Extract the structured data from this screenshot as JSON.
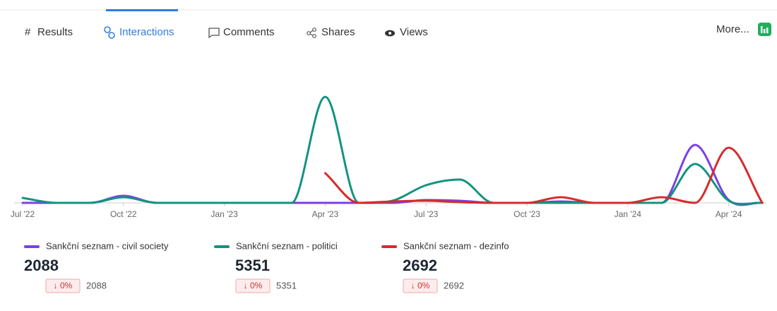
{
  "tabs": [
    "Results",
    "Interactions",
    "Comments",
    "Shares",
    "Views"
  ],
  "more_button": "More...",
  "chart_data": {
    "type": "line",
    "categories": [
      "Jul '22",
      null,
      null,
      "Oct '22",
      null,
      null,
      "Jan '23",
      null,
      null,
      "Apr '23",
      null,
      null,
      "Jul '23",
      null,
      null,
      "Oct '23",
      null,
      null,
      "Jan '24",
      null,
      null,
      "Apr '24",
      null
    ],
    "ylim": [
      0,
      160
    ],
    "series": [
      {
        "name": "Sankční seznam - civil society",
        "color": "#7b3fe4",
        "values": [
          0,
          0,
          0,
          10,
          0,
          0,
          0,
          0,
          0,
          0,
          0,
          0,
          4,
          3,
          0,
          0,
          2,
          0,
          0,
          0,
          82,
          4,
          0
        ]
      },
      {
        "name": "Sankční seznam - politici",
        "color": "#13937f",
        "values": [
          7,
          0,
          0,
          8,
          0,
          0,
          0,
          0,
          0,
          150,
          0,
          3,
          25,
          33,
          0,
          0,
          0,
          0,
          0,
          0,
          55,
          3,
          0
        ]
      },
      {
        "name": "Sankční seznam - dezinfo",
        "color": "#d62b2b",
        "values": [
          null,
          null,
          null,
          null,
          null,
          null,
          null,
          null,
          null,
          42,
          0,
          2,
          3,
          1,
          0,
          0,
          8,
          0,
          0,
          8,
          0,
          78,
          0
        ]
      }
    ]
  },
  "legend_stats": [
    {
      "total": 2088,
      "change": "↓ 0%",
      "previous": 2088
    },
    {
      "total": 5351,
      "change": "↓ 0%",
      "previous": 5351
    },
    {
      "total": 2692,
      "change": "↓ 0%",
      "previous": 2692
    }
  ]
}
